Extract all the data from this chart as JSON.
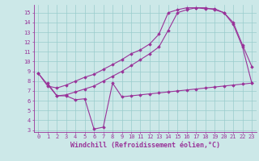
{
  "line1_x": [
    0,
    1,
    2,
    3,
    4,
    5,
    6,
    7,
    8,
    9,
    10,
    11,
    12,
    13,
    14,
    15,
    16,
    17,
    18,
    19,
    20,
    21,
    22,
    23
  ],
  "line1_y": [
    8.8,
    7.5,
    7.3,
    7.6,
    8.0,
    8.4,
    8.7,
    9.2,
    9.7,
    10.2,
    10.8,
    11.2,
    11.8,
    12.8,
    15.0,
    15.3,
    15.5,
    15.5,
    15.4,
    15.4,
    15.0,
    14.0,
    11.7,
    9.5
  ],
  "line2_x": [
    0,
    2,
    3,
    4,
    5,
    6,
    7,
    8,
    9,
    10,
    11,
    12,
    13,
    14,
    15,
    16,
    17,
    18,
    19,
    20,
    21,
    22,
    23
  ],
  "line2_y": [
    8.8,
    6.5,
    6.6,
    6.9,
    7.2,
    7.5,
    8.0,
    8.5,
    9.0,
    9.6,
    10.2,
    10.8,
    11.5,
    13.2,
    15.0,
    15.3,
    15.5,
    15.5,
    15.3,
    15.0,
    13.8,
    11.5,
    7.8
  ],
  "line3_x": [
    1,
    2,
    3,
    4,
    5,
    6,
    7,
    8,
    9,
    10,
    11,
    12,
    13,
    14,
    15,
    16,
    17,
    18,
    19,
    20,
    21,
    22,
    23
  ],
  "line3_y": [
    7.8,
    6.5,
    6.5,
    6.1,
    6.2,
    3.1,
    3.3,
    7.8,
    6.4,
    6.5,
    6.6,
    6.7,
    6.8,
    6.9,
    7.0,
    7.1,
    7.2,
    7.3,
    7.4,
    7.5,
    7.6,
    7.7,
    7.8
  ],
  "color": "#993399",
  "bg_color": "#cce8e8",
  "grid_color": "#99cccc",
  "xlabel": "Windchill (Refroidissement éolien,°C)",
  "xlim": [
    -0.5,
    23.5
  ],
  "ylim": [
    2.8,
    15.8
  ],
  "xticks": [
    0,
    1,
    2,
    3,
    4,
    5,
    6,
    7,
    8,
    9,
    10,
    11,
    12,
    13,
    14,
    15,
    16,
    17,
    18,
    19,
    20,
    21,
    22,
    23
  ],
  "yticks": [
    3,
    4,
    5,
    6,
    7,
    8,
    9,
    10,
    11,
    12,
    13,
    14,
    15
  ],
  "marker": "D",
  "markersize": 1.8,
  "linewidth": 0.8,
  "tick_fontsize": 5.0,
  "xlabel_fontsize": 6.0
}
